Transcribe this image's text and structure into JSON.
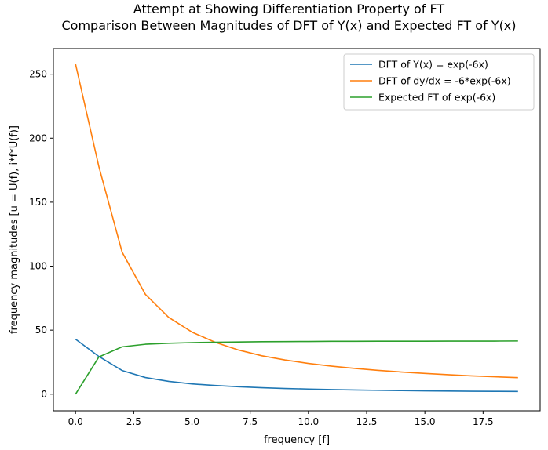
{
  "chart_data": {
    "type": "line",
    "title": "Attempt at Showing Differentiation Property of FT",
    "subtitle": "Comparison Between Magnitudes of DFT of Y(x) and Expected FT of Y(x)",
    "xlabel": "frequency [f]",
    "ylabel": "frequency magnitudes [u = U(f), i*f*U(f)]",
    "xlim": [
      -0.95,
      19.95
    ],
    "ylim": [
      -13,
      270
    ],
    "xticks": [
      0.0,
      2.5,
      5.0,
      7.5,
      10.0,
      12.5,
      15.0,
      17.5
    ],
    "xtick_labels": [
      "0.0",
      "2.5",
      "5.0",
      "7.5",
      "10.0",
      "12.5",
      "15.0",
      "17.5"
    ],
    "yticks": [
      0,
      50,
      100,
      150,
      200,
      250
    ],
    "ytick_labels": [
      "0",
      "50",
      "100",
      "150",
      "200",
      "250"
    ],
    "grid": false,
    "legend_position": "top-right",
    "x": [
      0,
      1,
      2,
      3,
      4,
      5,
      6,
      7,
      8,
      9,
      10,
      11,
      12,
      13,
      14,
      15,
      16,
      17,
      18,
      19
    ],
    "series": [
      {
        "name": "DFT of Y(x) = exp(-6x)",
        "color": "#1f77b4",
        "values": [
          43,
          29.5,
          18.5,
          13,
          10,
          8,
          6.8,
          5.8,
          5.0,
          4.4,
          4.0,
          3.6,
          3.3,
          3.0,
          2.8,
          2.6,
          2.4,
          2.3,
          2.2,
          2.1
        ]
      },
      {
        "name": "DFT of dy/dx = -6*exp(-6x)",
        "color": "#ff7f0e",
        "values": [
          258,
          178,
          111,
          78,
          60,
          48.5,
          40.5,
          34.5,
          30,
          26.7,
          24,
          21.9,
          20.1,
          18.6,
          17.3,
          16.2,
          15.2,
          14.3,
          13.6,
          12.9
        ]
      },
      {
        "name": "Expected FT of exp(-6x)",
        "color": "#2ca02c",
        "values": [
          0,
          29,
          37,
          39,
          39.8,
          40.3,
          40.6,
          40.8,
          41,
          41.1,
          41.2,
          41.3,
          41.3,
          41.4,
          41.4,
          41.4,
          41.5,
          41.5,
          41.5,
          41.6
        ]
      }
    ]
  }
}
